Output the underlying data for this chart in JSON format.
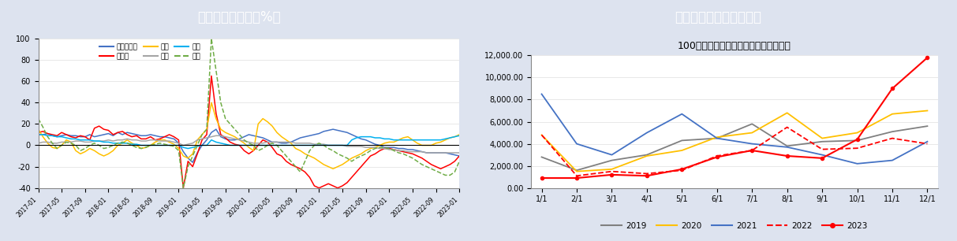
{
  "left_title": "房地产分项指标（%）",
  "right_title": "土地成交面积（万平米）",
  "right_subtitle": "100大中城市土地成交土地规划建筑面积",
  "header_bg": "#1b3a6b",
  "header_fg": "#ffffff",
  "fig_bg": "#dde3ef",
  "plot_bg": "#ffffff",
  "left_series": {
    "新开发投资": {
      "color": "#4472c4",
      "style": "-",
      "data": [
        10,
        10,
        11,
        9,
        8,
        9,
        10,
        9,
        9,
        8,
        8,
        10,
        8,
        9,
        10,
        11,
        9,
        12,
        10,
        12,
        11,
        10,
        9,
        9,
        10,
        9,
        8,
        8,
        7,
        6,
        2,
        -6,
        -12,
        -16,
        -7,
        0,
        5,
        12,
        15,
        8,
        6,
        5,
        5,
        6,
        8,
        10,
        9,
        8,
        7,
        5,
        3,
        3,
        2,
        2,
        3,
        5,
        7,
        8,
        9,
        10,
        11,
        13,
        14,
        15,
        14,
        13,
        12,
        10,
        8,
        6,
        5,
        3,
        1,
        0,
        -2,
        -2,
        -2,
        -3,
        -3,
        -4,
        -4,
        -5,
        -6,
        -7,
        -7,
        -7,
        -7,
        -7,
        -8,
        -9,
        -10
      ]
    },
    "新开工": {
      "color": "#ff0000",
      "style": "-",
      "data": [
        12,
        13,
        11,
        10,
        9,
        12,
        10,
        8,
        7,
        9,
        8,
        5,
        16,
        18,
        15,
        14,
        10,
        12,
        13,
        10,
        8,
        9,
        6,
        6,
        8,
        5,
        6,
        8,
        10,
        8,
        5,
        -40,
        -15,
        -20,
        -8,
        5,
        10,
        65,
        30,
        10,
        7,
        3,
        1,
        0,
        -5,
        -8,
        -5,
        0,
        5,
        3,
        -2,
        -8,
        -10,
        -15,
        -18,
        -20,
        -22,
        -25,
        -30,
        -38,
        -40,
        -38,
        -36,
        -38,
        -40,
        -38,
        -35,
        -30,
        -25,
        -20,
        -15,
        -10,
        -8,
        -5,
        -3,
        -3,
        -4,
        -5,
        -6,
        -7,
        -8,
        -10,
        -12,
        -15,
        -18,
        -20,
        -22,
        -20,
        -18,
        -15,
        -10
      ]
    },
    "竣工": {
      "color": "#ffc000",
      "style": "-",
      "data": [
        15,
        8,
        2,
        -2,
        -3,
        0,
        5,
        3,
        -5,
        -8,
        -6,
        -3,
        -5,
        -8,
        -10,
        -8,
        -5,
        0,
        2,
        5,
        2,
        0,
        -3,
        -2,
        0,
        3,
        5,
        5,
        3,
        1,
        -3,
        -10,
        -12,
        -8,
        5,
        10,
        15,
        40,
        25,
        15,
        12,
        10,
        8,
        5,
        2,
        -2,
        -5,
        20,
        25,
        22,
        18,
        12,
        8,
        5,
        2,
        -3,
        -5,
        -8,
        -10,
        -12,
        -15,
        -18,
        -20,
        -22,
        -20,
        -18,
        -15,
        -12,
        -10,
        -8,
        -5,
        -3,
        -2,
        0,
        2,
        3,
        3,
        5,
        7,
        8,
        5,
        2,
        0,
        0,
        0,
        2,
        3,
        5,
        7,
        8,
        10
      ]
    },
    "施工": {
      "color": "#a5a5a5",
      "style": "-",
      "data": [
        2,
        3,
        3,
        2,
        2,
        3,
        3,
        3,
        4,
        4,
        3,
        3,
        4,
        4,
        4,
        5,
        4,
        5,
        5,
        6,
        5,
        5,
        4,
        4,
        5,
        5,
        4,
        4,
        4,
        3,
        2,
        0,
        1,
        2,
        5,
        6,
        7,
        8,
        9,
        9,
        8,
        7,
        6,
        5,
        4,
        3,
        2,
        2,
        2,
        3,
        3,
        3,
        3,
        3,
        3,
        2,
        2,
        2,
        2,
        1,
        1,
        1,
        0,
        0,
        0,
        0,
        -1,
        -1,
        -1,
        -1,
        -2,
        -2,
        -2,
        -3,
        -3,
        -4,
        -4,
        -5,
        -5,
        -6,
        -6,
        -6,
        -6,
        -7,
        -7,
        -7,
        -7,
        -7,
        -7,
        -7,
        -7
      ]
    },
    "库存": {
      "color": "#00b0f0",
      "style": "-",
      "data": [
        10,
        10,
        9,
        9,
        8,
        8,
        7,
        6,
        6,
        5,
        5,
        5,
        4,
        4,
        3,
        3,
        2,
        2,
        2,
        2,
        1,
        1,
        0,
        0,
        0,
        0,
        0,
        0,
        0,
        0,
        0,
        -2,
        -3,
        -2,
        -1,
        0,
        0,
        5,
        3,
        2,
        1,
        0,
        0,
        0,
        0,
        0,
        0,
        0,
        0,
        0,
        0,
        0,
        0,
        0,
        0,
        0,
        0,
        0,
        0,
        0,
        0,
        0,
        0,
        0,
        0,
        0,
        0,
        5,
        7,
        8,
        8,
        8,
        7,
        7,
        6,
        6,
        5,
        5,
        5,
        5,
        5,
        5,
        5,
        5,
        5,
        5,
        5,
        6,
        7,
        8,
        9
      ]
    },
    "销售": {
      "color": "#70ad47",
      "style": "--",
      "data": [
        25,
        17,
        8,
        2,
        -3,
        0,
        3,
        2,
        0,
        -5,
        -3,
        0,
        2,
        0,
        -3,
        -2,
        0,
        2,
        3,
        2,
        0,
        -2,
        -3,
        -2,
        0,
        1,
        2,
        1,
        0,
        -1,
        -5,
        -40,
        -20,
        -10,
        0,
        10,
        15,
        100,
        70,
        40,
        25,
        20,
        15,
        10,
        5,
        2,
        0,
        -5,
        -3,
        0,
        2,
        0,
        -5,
        -10,
        -15,
        -20,
        -25,
        -15,
        -5,
        0,
        2,
        0,
        -3,
        -5,
        -8,
        -10,
        -12,
        -15,
        -12,
        -10,
        -8,
        -5,
        -3,
        -2,
        -2,
        -3,
        -5,
        -7,
        -8,
        -10,
        -12,
        -15,
        -18,
        -20,
        -22,
        -24,
        -26,
        -28,
        -28,
        -25,
        -15
      ]
    }
  },
  "left_xlabels": [
    "2017-01",
    "2017-05",
    "2017-09",
    "2018-01",
    "2018-05",
    "2018-09",
    "2019-01",
    "2019-05",
    "2019-09",
    "2020-01",
    "2020-05",
    "2020-09",
    "2021-01",
    "2021-05",
    "2021-09",
    "2022-01",
    "2022-05",
    "2022-09",
    "2023-01"
  ],
  "left_ylim": [
    -40,
    100
  ],
  "left_yticks": [
    -40,
    -20,
    0,
    20,
    40,
    60,
    80,
    100
  ],
  "right_xlabels": [
    "1/1",
    "2/1",
    "3/1",
    "4/1",
    "5/1",
    "6/1",
    "7/1",
    "8/1",
    "9/1",
    "10/1",
    "11/1",
    "12/1"
  ],
  "right_yticks": [
    0.0,
    2000.0,
    4000.0,
    6000.0,
    8000.0,
    10000.0,
    12000.0
  ],
  "right_ylim": [
    0,
    12000
  ],
  "right_series": {
    "2019": {
      "color": "#808080",
      "style": "-",
      "marker": null,
      "lw": 1.3,
      "data": [
        2800,
        1600,
        2500,
        3000,
        4300,
        4500,
        5800,
        3800,
        4200,
        4300,
        5100,
        5600
      ]
    },
    "2020": {
      "color": "#ffc000",
      "style": "-",
      "marker": null,
      "lw": 1.3,
      "data": [
        4800,
        1500,
        1700,
        2900,
        3400,
        4600,
        5000,
        6800,
        4500,
        5000,
        6700,
        7000
      ]
    },
    "2021": {
      "color": "#4472c4",
      "style": "-",
      "marker": null,
      "lw": 1.3,
      "data": [
        8500,
        4000,
        3000,
        5000,
        6700,
        4500,
        4000,
        3700,
        3000,
        2200,
        2500,
        4200
      ]
    },
    "2022": {
      "color": "#ff0000",
      "style": "--",
      "marker": null,
      "lw": 1.3,
      "data": [
        4800,
        1100,
        1500,
        1300,
        1600,
        2900,
        3400,
        5500,
        3500,
        3600,
        4500,
        4000
      ]
    },
    "2023": {
      "color": "#ff0000",
      "style": "-",
      "marker": "o",
      "lw": 1.5,
      "data": [
        900,
        900,
        1200,
        1100,
        1700,
        2800,
        3400,
        2900,
        2700,
        4400,
        9000,
        11800
      ]
    }
  }
}
